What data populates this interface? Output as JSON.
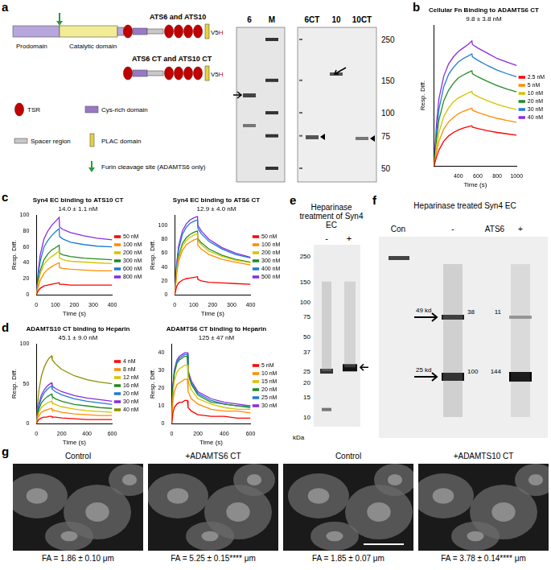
{
  "panel_letters": [
    "a",
    "b",
    "c",
    "d",
    "e",
    "f",
    "g"
  ],
  "diagram": {
    "full_construct": "ATS6 and ATS10",
    "ct_construct": "ATS6 CT and ATS10 CT",
    "tag": "V5",
    "tag_his": "H",
    "prodomain": "Prodomain",
    "catalytic": "Catalytic domain",
    "tsr": "TSR",
    "cys_rich": "Cys-rich domain",
    "spacer": "Spacer region",
    "plac": "PLAC domain",
    "furin": "Furin cleavage site (ADAMTS6 only)"
  },
  "gel_a": {
    "lanes_left": [
      "6",
      "M"
    ],
    "lanes_right": [
      "6CT",
      "10",
      "10CT"
    ],
    "markers": [
      250,
      150,
      100,
      75,
      50
    ]
  },
  "gel_e": {
    "title": "Heparinase treatment of Syn4 EC",
    "lanes": [
      "-",
      "+"
    ],
    "markers": [
      250,
      150,
      100,
      75,
      50,
      37,
      25,
      20,
      15,
      10
    ],
    "unit": "kDa"
  },
  "gel_f": {
    "title": "Heparinase treated Syn4 EC",
    "lanes": [
      "Con",
      "-",
      "ATS6",
      "+"
    ],
    "arrows": [
      "49 kd",
      "25 kd"
    ],
    "band_values": [
      [
        38,
        11
      ],
      [
        100,
        144
      ]
    ]
  },
  "images": [
    {
      "title": "Control",
      "caption": "FA = 1.86 ± 0.10 μm"
    },
    {
      "title": "+ADAMTS6 CT",
      "caption": "FA = 5.25 ± 0.15**** μm"
    },
    {
      "title": "Control",
      "caption": "FA = 1.85 ± 0.07 μm"
    },
    {
      "title": "+ADAMTS10 CT",
      "caption": "FA = 3.78 ± 0.14**** μm"
    }
  ],
  "chart_data": [
    {
      "type": "line",
      "title": "Cellular Fn Binding to ADAMTS6 CT",
      "annotation": "9.8 ± 3.8 nM",
      "x_label": "Time (s)",
      "y_label": "Resp. Diff.",
      "grid": false,
      "legend": "right",
      "tick_labels": "x",
      "x": [
        150,
        175,
        200,
        250,
        300,
        350,
        400,
        450,
        500,
        540,
        545,
        600,
        700,
        800,
        900,
        1000
      ],
      "xlim": [
        150,
        1000
      ],
      "xticks": [
        400,
        600,
        800,
        1000
      ],
      "ylim": [
        0,
        400
      ],
      "series": [
        {
          "name": "2.5 nM",
          "color": "#ff0000",
          "values": [
            0,
            25,
            45,
            70,
            85,
            95,
            102,
            107,
            111,
            114,
            110,
            106,
            100,
            95,
            91,
            87
          ]
        },
        {
          "name": "5 nM",
          "color": "#ff8c00",
          "values": [
            0,
            40,
            70,
            105,
            125,
            138,
            148,
            155,
            160,
            164,
            158,
            152,
            143,
            135,
            129,
            124
          ]
        },
        {
          "name": "10 nM",
          "color": "#d4c400",
          "values": [
            0,
            55,
            95,
            140,
            165,
            182,
            193,
            200,
            207,
            212,
            205,
            197,
            185,
            175,
            167,
            160
          ]
        },
        {
          "name": "20 nM",
          "color": "#228b22",
          "values": [
            0,
            75,
            130,
            185,
            215,
            235,
            250,
            258,
            265,
            270,
            262,
            253,
            240,
            228,
            218,
            210
          ]
        },
        {
          "name": "30 nM",
          "color": "#1e7bd8",
          "values": [
            0,
            95,
            160,
            225,
            260,
            280,
            295,
            305,
            312,
            318,
            310,
            300,
            285,
            272,
            262,
            253
          ]
        },
        {
          "name": "40 nM",
          "color": "#8a2be2",
          "values": [
            0,
            120,
            190,
            255,
            290,
            310,
            325,
            335,
            345,
            355,
            345,
            335,
            320,
            305,
            295,
            285
          ]
        }
      ]
    },
    {
      "type": "line",
      "title": "Syn4 EC binding to ATS10 CT",
      "annotation": "14.0 ± 1.1 nM",
      "x_label": "Time (s)",
      "y_label": "Resp. Diff.",
      "grid": false,
      "legend": "right",
      "x": [
        0,
        10,
        20,
        40,
        60,
        80,
        100,
        120,
        122,
        140,
        180,
        250,
        320,
        400
      ],
      "xlim": [
        0,
        400
      ],
      "xticks": [
        0,
        100,
        200,
        300,
        400
      ],
      "ylim": [
        0,
        100
      ],
      "yticks": [
        0,
        20,
        40,
        60,
        80,
        100
      ],
      "series": [
        {
          "name": "50 nM",
          "color": "#ff0000",
          "values": [
            0,
            5,
            8,
            11,
            12,
            13,
            14,
            15,
            13,
            13,
            12,
            12,
            12,
            12
          ]
        },
        {
          "name": "100 nM",
          "color": "#ff8c00",
          "values": [
            0,
            10,
            18,
            27,
            32,
            35,
            38,
            40,
            34,
            33,
            32,
            31,
            30,
            30
          ]
        },
        {
          "name": "200 nM",
          "color": "#d4c400",
          "values": [
            0,
            15,
            26,
            38,
            44,
            48,
            51,
            55,
            46,
            44,
            42,
            41,
            40,
            39
          ]
        },
        {
          "name": "300 nM",
          "color": "#228b22",
          "values": [
            0,
            18,
            30,
            44,
            51,
            56,
            59,
            62,
            52,
            50,
            48,
            46,
            45,
            44
          ]
        },
        {
          "name": "600 nM",
          "color": "#1e7bd8",
          "values": [
            0,
            25,
            42,
            60,
            68,
            74,
            79,
            83,
            73,
            70,
            66,
            63,
            61,
            60
          ]
        },
        {
          "name": "800 nM",
          "color": "#8a2be2",
          "values": [
            0,
            30,
            50,
            70,
            80,
            87,
            92,
            97,
            85,
            82,
            78,
            74,
            71,
            69
          ]
        }
      ]
    },
    {
      "type": "line",
      "title": "Syn4 EC binding to ATS6 CT",
      "annotation": "12.9 ± 4.0 nM",
      "x_label": "Time (s)",
      "y_label": "Resp. Diff.",
      "grid": false,
      "legend": "right",
      "x": [
        0,
        10,
        20,
        40,
        60,
        80,
        100,
        120,
        122,
        140,
        180,
        250,
        320,
        400
      ],
      "xlim": [
        0,
        400
      ],
      "xticks": [
        0,
        100,
        200,
        300,
        400
      ],
      "ylim": [
        0,
        115
      ],
      "yticks": [
        0,
        20,
        40,
        60,
        80,
        100
      ],
      "series": [
        {
          "name": "50 nM",
          "color": "#ff0000",
          "values": [
            0,
            12,
            17,
            21,
            23,
            24,
            25,
            26,
            22,
            20,
            18,
            17,
            16,
            15
          ]
        },
        {
          "name": "100 nM",
          "color": "#ff8c00",
          "values": [
            0,
            30,
            48,
            64,
            72,
            76,
            79,
            81,
            71,
            66,
            58,
            51,
            47,
            43
          ]
        },
        {
          "name": "200 nM",
          "color": "#d4c400",
          "values": [
            0,
            33,
            52,
            70,
            78,
            83,
            86,
            88,
            78,
            72,
            63,
            55,
            50,
            46
          ]
        },
        {
          "name": "300 nM",
          "color": "#228b22",
          "values": [
            0,
            35,
            55,
            74,
            82,
            87,
            90,
            92,
            81,
            75,
            66,
            57,
            51,
            47
          ]
        },
        {
          "name": "400 nM",
          "color": "#1e7bd8",
          "values": [
            0,
            42,
            65,
            87,
            97,
            103,
            106,
            108,
            96,
            88,
            77,
            66,
            58,
            53
          ]
        },
        {
          "name": "500 nM",
          "color": "#8a2be2",
          "values": [
            0,
            45,
            70,
            92,
            102,
            108,
            111,
            113,
            100,
            92,
            80,
            68,
            60,
            54
          ]
        }
      ]
    },
    {
      "type": "line",
      "title": "ADAMTS10 CT binding to Heparin",
      "annotation": "45.1 ± 9.0 nM",
      "x_label": "Time (s)",
      "y_label": "Resp. Diff.",
      "grid": false,
      "legend": "right",
      "x": [
        0,
        10,
        20,
        40,
        60,
        80,
        100,
        120,
        125,
        150,
        200,
        300,
        400,
        500,
        600
      ],
      "xlim": [
        0,
        600
      ],
      "xticks": [
        0,
        200,
        400,
        600
      ],
      "ylim": [
        0,
        100
      ],
      "yticks": [
        0,
        50,
        100
      ],
      "series": [
        {
          "name": "4 nM",
          "color": "#ff0000",
          "values": [
            0,
            3,
            5,
            7,
            8,
            8,
            9,
            9,
            8,
            8,
            7,
            6,
            5,
            5,
            5
          ]
        },
        {
          "name": "8 nM",
          "color": "#ff8c00",
          "values": [
            0,
            6,
            10,
            14,
            16,
            17,
            18,
            19,
            17,
            16,
            14,
            12,
            11,
            10,
            10
          ]
        },
        {
          "name": "12 nM",
          "color": "#d4c400",
          "values": [
            0,
            9,
            14,
            20,
            23,
            25,
            27,
            28,
            26,
            24,
            21,
            18,
            16,
            15,
            14
          ]
        },
        {
          "name": "16 nM",
          "color": "#228b22",
          "values": [
            0,
            11,
            18,
            26,
            30,
            33,
            35,
            37,
            34,
            31,
            28,
            24,
            22,
            20,
            19
          ]
        },
        {
          "name": "20 nM",
          "color": "#1e7bd8",
          "values": [
            0,
            13,
            22,
            32,
            38,
            42,
            45,
            47,
            43,
            40,
            36,
            31,
            28,
            26,
            24
          ]
        },
        {
          "name": "30 nM",
          "color": "#8a2be2",
          "values": [
            0,
            15,
            25,
            36,
            42,
            46,
            49,
            51,
            47,
            44,
            40,
            35,
            32,
            30,
            28
          ]
        },
        {
          "name": "40 nM",
          "color": "#8f8f00",
          "values": [
            0,
            25,
            42,
            60,
            70,
            77,
            82,
            85,
            80,
            75,
            68,
            60,
            55,
            52,
            50
          ]
        }
      ]
    },
    {
      "type": "line",
      "title": "ADAMTS6 CT binding to Heparin",
      "annotation": "125 ± 47 nM",
      "x_label": "Time (s)",
      "y_label": "Resp. Diff.",
      "grid": false,
      "legend": "right",
      "x": [
        0,
        10,
        20,
        40,
        60,
        80,
        100,
        120,
        125,
        150,
        200,
        300,
        400,
        500,
        600
      ],
      "xlim": [
        0,
        600
      ],
      "xticks": [
        0,
        200,
        400,
        600
      ],
      "ylim": [
        0,
        45
      ],
      "yticks": [
        0,
        10,
        20,
        30,
        40
      ],
      "series": [
        {
          "name": "5 nM",
          "color": "#ff0000",
          "values": [
            0,
            6,
            9,
            11,
            12,
            12,
            13,
            13,
            9,
            7,
            5,
            4,
            4,
            3,
            3
          ]
        },
        {
          "name": "10 nM",
          "color": "#ff8c00",
          "values": [
            0,
            13,
            18,
            22,
            23,
            24,
            25,
            25,
            18,
            14,
            11,
            8,
            7,
            7,
            6
          ]
        },
        {
          "name": "15 nM",
          "color": "#d4c400",
          "values": [
            0,
            17,
            24,
            29,
            31,
            32,
            33,
            33,
            24,
            19,
            14,
            11,
            9,
            8,
            8
          ]
        },
        {
          "name": "20 nM",
          "color": "#228b22",
          "values": [
            0,
            20,
            28,
            34,
            36,
            37,
            38,
            38,
            28,
            22,
            16,
            12,
            11,
            10,
            9
          ]
        },
        {
          "name": "25 nM",
          "color": "#1e7bd8",
          "values": [
            0,
            21,
            29,
            35,
            37,
            38,
            39,
            39,
            29,
            23,
            17,
            13,
            11,
            10,
            10
          ]
        },
        {
          "name": "30 nM",
          "color": "#8a2be2",
          "values": [
            0,
            22,
            30,
            36,
            38,
            39,
            40,
            40,
            30,
            24,
            18,
            14,
            12,
            11,
            10
          ]
        }
      ]
    }
  ]
}
